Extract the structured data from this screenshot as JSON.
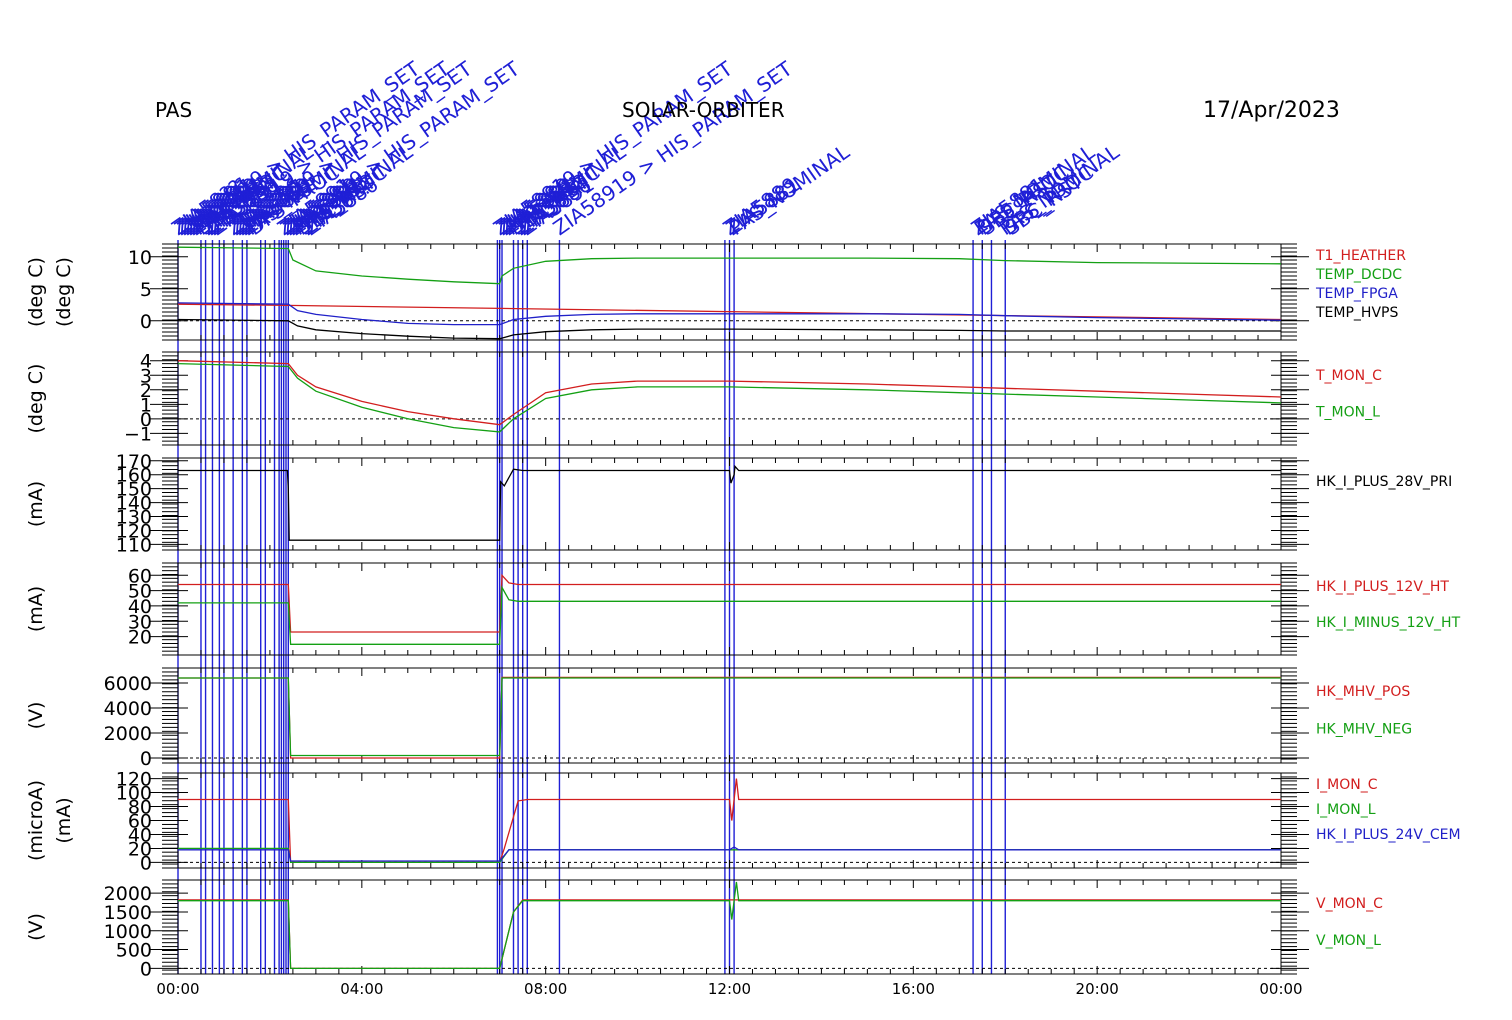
{
  "header": {
    "left": "PAS",
    "center": "SOLAR-ORBITER",
    "right": "17/Apr/2023"
  },
  "colors": {
    "red": "#d21e1e",
    "green": "#14a014",
    "blue": "#2020c8",
    "black": "#000000",
    "event_line": "#1f1fd6"
  },
  "event_labels": [
    "ZIA58??",
    "ZIA5886",
    "ZIA5891",
    "ZIA58919 > HIS_PARAM_SET",
    "ZIA5880",
    "ZIA5889",
    "ZIA5881",
    "PAS_NOMINAL",
    "DPS_PROC",
    "SBC_RST"
  ],
  "x_axis": {
    "ticks": [
      "00:00",
      "04:00",
      "08:00",
      "12:00",
      "16:00",
      "20:00",
      "00:00"
    ],
    "range_hours": [
      0,
      24
    ]
  },
  "chart_data": [
    {
      "type": "line",
      "ylabel": "(deg C)",
      "ylabel2": "(deg C)",
      "ylim": [
        -3,
        12
      ],
      "yticks": [
        10,
        5,
        0
      ],
      "zero_line": true,
      "series": [
        {
          "name": "T1_HEATHER",
          "color": "#d21e1e",
          "x": [
            0,
            2.4,
            24
          ],
          "y": [
            2.6,
            2.4,
            0.2
          ]
        },
        {
          "name": "TEMP_DCDC",
          "color": "#14a014",
          "x": [
            0,
            2.4,
            2.5,
            3,
            4,
            5,
            6,
            7.0,
            7.05,
            7.3,
            8,
            9,
            10,
            12,
            15,
            17,
            18,
            20,
            24
          ],
          "y": [
            11.5,
            11.3,
            9.5,
            7.8,
            7.0,
            6.5,
            6.1,
            5.8,
            7.0,
            8.2,
            9.3,
            9.7,
            9.8,
            9.8,
            9.8,
            9.7,
            9.4,
            9.1,
            8.9
          ]
        },
        {
          "name": "TEMP_FPGA",
          "color": "#2020c8",
          "x": [
            0,
            2.4,
            2.6,
            3,
            4,
            5,
            6,
            7.0,
            7.3,
            8,
            9,
            10,
            12,
            15,
            17,
            18,
            20,
            24
          ],
          "y": [
            2.8,
            2.6,
            1.6,
            1.0,
            0.2,
            -0.4,
            -0.6,
            -0.6,
            0.2,
            0.7,
            1.0,
            1.1,
            1.1,
            1.1,
            1.0,
            0.8,
            0.5,
            0.1
          ]
        },
        {
          "name": "TEMP_HVPS",
          "color": "#000000",
          "x": [
            0,
            2.4,
            2.6,
            3,
            4,
            5,
            6,
            7.0,
            7.3,
            8,
            9,
            10,
            12,
            15,
            17,
            18,
            20,
            24
          ],
          "y": [
            0.2,
            0.0,
            -0.8,
            -1.4,
            -2.0,
            -2.4,
            -2.7,
            -2.8,
            -2.2,
            -1.7,
            -1.4,
            -1.3,
            -1.3,
            -1.4,
            -1.5,
            -1.6,
            -1.6,
            -1.6
          ]
        }
      ]
    },
    {
      "type": "line",
      "ylabel": "(deg C)",
      "ylim": [
        -1.8,
        4.6
      ],
      "yticks": [
        4,
        3,
        2,
        1,
        0,
        -1
      ],
      "zero_line": true,
      "series": [
        {
          "name": "T_MON_C",
          "color": "#d21e1e",
          "x": [
            0,
            2.4,
            2.6,
            3,
            4,
            5,
            6,
            7.0,
            7.3,
            8,
            9,
            10,
            12,
            15,
            17,
            18,
            20,
            22,
            24
          ],
          "y": [
            4.0,
            3.8,
            3.0,
            2.2,
            1.2,
            0.5,
            0.0,
            -0.4,
            0.3,
            1.8,
            2.4,
            2.6,
            2.6,
            2.4,
            2.2,
            2.1,
            1.9,
            1.7,
            1.5
          ]
        },
        {
          "name": "T_MON_L",
          "color": "#14a014",
          "x": [
            0,
            2.4,
            2.6,
            3,
            4,
            5,
            6,
            7.0,
            7.3,
            8,
            9,
            10,
            12,
            15,
            17,
            18,
            20,
            22,
            24
          ],
          "y": [
            3.8,
            3.6,
            2.8,
            1.9,
            0.8,
            0.0,
            -0.6,
            -0.9,
            0.0,
            1.4,
            2.0,
            2.2,
            2.2,
            2.0,
            1.8,
            1.7,
            1.5,
            1.3,
            1.1
          ]
        }
      ]
    },
    {
      "type": "line",
      "ylabel": "(mA)",
      "ylim": [
        106,
        172
      ],
      "yticks": [
        170,
        160,
        150,
        140,
        130,
        120,
        110
      ],
      "zero_line": false,
      "series": [
        {
          "name": "HK_I_PLUS_28V_PRI",
          "color": "#000000",
          "x": [
            0,
            2.38,
            2.4,
            2.42,
            2.45,
            7.0,
            7.02,
            7.1,
            7.3,
            7.5,
            12.0,
            12.03,
            12.1,
            12.12,
            12.2,
            24
          ],
          "y": [
            163,
            163,
            150,
            113,
            113,
            113,
            155,
            152,
            164,
            163,
            163,
            154,
            160,
            166,
            163,
            163
          ]
        }
      ]
    },
    {
      "type": "line",
      "ylabel": "(mA)",
      "ylim": [
        8,
        68
      ],
      "yticks": [
        60,
        50,
        40,
        30,
        20
      ],
      "zero_line": false,
      "series": [
        {
          "name": "HK_I_PLUS_12V_HT",
          "color": "#d21e1e",
          "x": [
            0,
            2.4,
            2.45,
            7.0,
            7.05,
            7.2,
            7.4,
            24
          ],
          "y": [
            54,
            54,
            23,
            23,
            60,
            55,
            54,
            54
          ]
        },
        {
          "name": "HK_I_MINUS_12V_HT",
          "color": "#14a014",
          "x": [
            0,
            2.4,
            2.45,
            7.0,
            7.05,
            7.2,
            7.4,
            24
          ],
          "y": [
            42,
            42,
            15,
            15,
            52,
            44,
            43,
            43
          ]
        }
      ]
    },
    {
      "type": "line",
      "ylabel": "(V)",
      "ylim": [
        -400,
        7200
      ],
      "yticks": [
        6000,
        4000,
        2000,
        0
      ],
      "zero_line": true,
      "series": [
        {
          "name": "HK_MHV_POS",
          "color": "#d21e1e",
          "x": [
            0,
            2.4,
            2.45,
            7.0,
            7.05,
            24
          ],
          "y": [
            6400,
            6400,
            0,
            0,
            6450,
            6450
          ]
        },
        {
          "name": "HK_MHV_NEG",
          "color": "#14a014",
          "x": [
            0,
            2.4,
            2.45,
            7.0,
            7.05,
            24
          ],
          "y": [
            6400,
            6400,
            200,
            200,
            6400,
            6400
          ]
        }
      ]
    },
    {
      "type": "line",
      "ylabel": "(microA)",
      "ylabel2": "(mA)",
      "ylim": [
        -8,
        128
      ],
      "yticks": [
        120,
        100,
        80,
        60,
        40,
        20,
        0
      ],
      "zero_line": true,
      "series": [
        {
          "name": "I_MON_C",
          "color": "#d21e1e",
          "x": [
            0,
            2.4,
            2.45,
            7.0,
            7.1,
            7.4,
            7.6,
            12.0,
            12.05,
            12.15,
            12.2,
            24
          ],
          "y": [
            90,
            90,
            0,
            0,
            20,
            88,
            90,
            90,
            60,
            120,
            90,
            90
          ]
        },
        {
          "name": "I_MON_L",
          "color": "#14a014",
          "x": [
            0,
            2.4,
            2.45,
            7.0,
            7.2,
            7.4,
            24
          ],
          "y": [
            20,
            20,
            0,
            0,
            18,
            18,
            18
          ]
        },
        {
          "name": "HK_I_PLUS_24V_CEM",
          "color": "#2020c8",
          "x": [
            0,
            2.4,
            2.45,
            7.0,
            7.2,
            7.4,
            12.0,
            12.1,
            12.2,
            24
          ],
          "y": [
            18,
            18,
            2,
            2,
            18,
            18,
            18,
            22,
            18,
            18
          ]
        }
      ]
    },
    {
      "type": "line",
      "ylabel": "(V)",
      "ylim": [
        -150,
        2350
      ],
      "yticks": [
        2000,
        1500,
        1000,
        500,
        0
      ],
      "zero_line": true,
      "series": [
        {
          "name": "V_MON_C",
          "color": "#d21e1e",
          "x": [
            0,
            2.4,
            2.45,
            7.0,
            7.3,
            7.5,
            24
          ],
          "y": [
            1820,
            1820,
            0,
            0,
            1500,
            1820,
            1820
          ]
        },
        {
          "name": "V_MON_L",
          "color": "#14a014",
          "x": [
            0,
            2.4,
            2.45,
            7.0,
            7.3,
            7.5,
            12.0,
            12.05,
            12.15,
            12.2,
            24
          ],
          "y": [
            1800,
            1800,
            0,
            0,
            1500,
            1800,
            1800,
            1300,
            2300,
            1800,
            1800
          ]
        }
      ]
    }
  ],
  "event_times_hours": [
    0.0,
    0.5,
    0.6,
    0.75,
    0.9,
    1.0,
    1.2,
    1.4,
    1.5,
    1.8,
    1.9,
    2.1,
    2.2,
    2.25,
    2.3,
    2.35,
    2.4,
    6.95,
    7.0,
    7.05,
    7.3,
    7.4,
    7.5,
    7.6,
    8.3,
    11.9,
    12.0,
    12.1,
    17.3,
    17.5,
    17.7,
    18.0
  ]
}
